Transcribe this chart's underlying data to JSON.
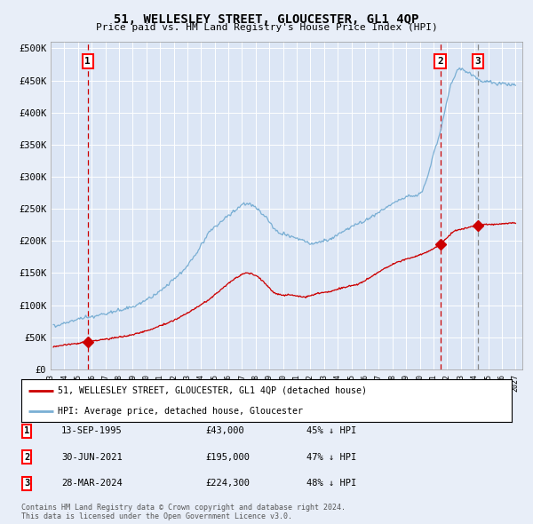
{
  "title": "51, WELLESLEY STREET, GLOUCESTER, GL1 4QP",
  "subtitle": "Price paid vs. HM Land Registry's House Price Index (HPI)",
  "ylim": [
    0,
    510000
  ],
  "yticks": [
    0,
    50000,
    100000,
    150000,
    200000,
    250000,
    300000,
    350000,
    400000,
    450000,
    500000
  ],
  "ytick_labels": [
    "£0",
    "£50K",
    "£100K",
    "£150K",
    "£200K",
    "£250K",
    "£300K",
    "£350K",
    "£400K",
    "£450K",
    "£500K"
  ],
  "bg_color": "#e8eef8",
  "plot_bg": "#dce6f5",
  "grid_color": "#ffffff",
  "hpi_color": "#7aafd4",
  "price_color": "#cc0000",
  "vline_red_color": "#cc0000",
  "vline_gray_color": "#888888",
  "transaction_labels": [
    "1",
    "2",
    "3"
  ],
  "transaction_dates": [
    "13-SEP-1995",
    "30-JUN-2021",
    "28-MAR-2024"
  ],
  "transaction_prices": [
    43000,
    195000,
    224300
  ],
  "transaction_hpi_pct": [
    "45% ↓ HPI",
    "47% ↓ HPI",
    "48% ↓ HPI"
  ],
  "legend_label_red": "51, WELLESLEY STREET, GLOUCESTER, GL1 4QP (detached house)",
  "legend_label_blue": "HPI: Average price, detached house, Gloucester",
  "footnote": "Contains HM Land Registry data © Crown copyright and database right 2024.\nThis data is licensed under the Open Government Licence v3.0.",
  "sale1_x": 1995.71,
  "sale2_x": 2021.5,
  "sale3_x": 2024.24,
  "xlim_start": 1993.2,
  "xlim_end": 2027.5
}
